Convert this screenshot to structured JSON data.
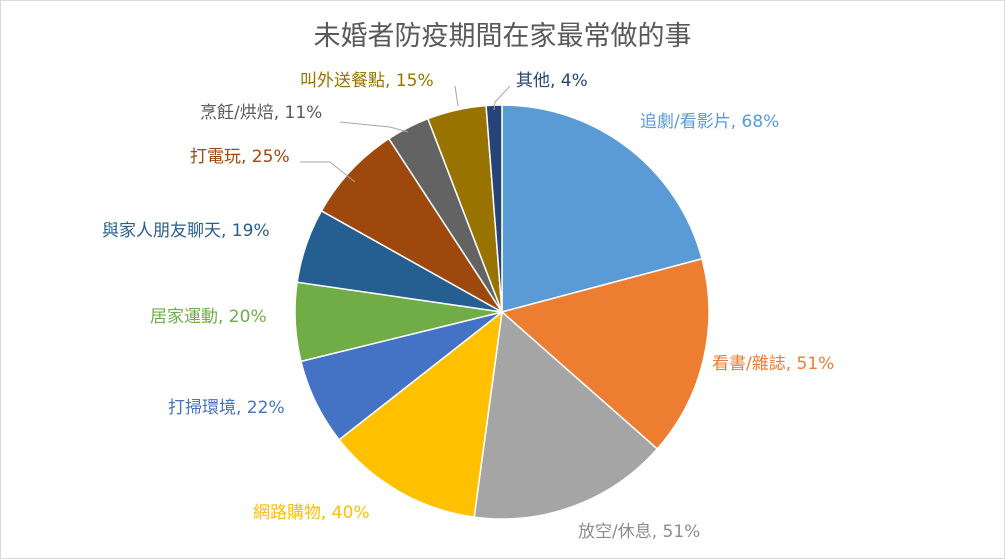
{
  "chart_data": {
    "type": "pie",
    "title": "未婚者防疫期間在家最常做的事",
    "legend": "none",
    "categories": [
      "追劇/看影片",
      "看書/雜誌",
      "放空/休息",
      "網路購物",
      "打掃環境",
      "居家運動",
      "與家人朋友聊天",
      "打電玩",
      "烹飪/烘焙",
      "叫外送餐點",
      "其他"
    ],
    "values": [
      68,
      51,
      51,
      40,
      22,
      20,
      19,
      25,
      11,
      15,
      4
    ],
    "labels": [
      "追劇/看影片, 68%",
      "看書/雜誌, 51%",
      "放空/休息, 51%",
      "網路購物, 40%",
      "打掃環境, 22%",
      "居家運動, 20%",
      "與家人朋友聊天, 19%",
      "打電玩, 25%",
      "烹飪/烘焙, 11%",
      "叫外送餐點, 15%",
      "其他, 4%"
    ],
    "colors": [
      "#5B9BD5",
      "#ED7D31",
      "#A5A5A5",
      "#FFC000",
      "#4472C4",
      "#70AD47",
      "#255E91",
      "#9E480E",
      "#636363",
      "#997300",
      "#264478"
    ]
  }
}
